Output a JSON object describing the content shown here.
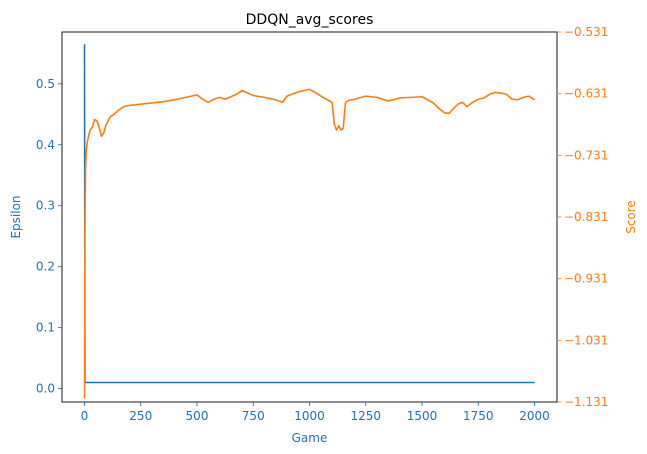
{
  "chart_data": {
    "type": "line",
    "title": "DDQN_avg_scores",
    "xlabel": "Game",
    "ylabel_left": "Epsilon",
    "ylabel_right": "Score",
    "xlim": [
      -100,
      2100
    ],
    "ylim_left": [
      -0.022,
      0.585
    ],
    "ylim_right": [
      -1.131,
      -0.531
    ],
    "x_ticks": [
      "0",
      "250",
      "500",
      "750",
      "1000",
      "1250",
      "1500",
      "1750",
      "2000"
    ],
    "y_left_ticks": [
      "0.0",
      "0.1",
      "0.2",
      "0.3",
      "0.4",
      "0.5"
    ],
    "y_right_ticks": [
      "−0.531",
      "−0.631",
      "−0.731",
      "−0.831",
      "−0.931",
      "−1.031",
      "−1.131"
    ],
    "grid": false,
    "colors": {
      "epsilon": "#1f77b4",
      "score": "#ff7f0e",
      "frame": "#000000"
    },
    "series": [
      {
        "axis": "left",
        "x": [
          0,
          1,
          2,
          5,
          10,
          2000
        ],
        "values": [
          0.565,
          0.3,
          0.011,
          0.01,
          0.01,
          0.01
        ]
      },
      {
        "axis": "right",
        "x": [
          0,
          2,
          5,
          8,
          12,
          18,
          25,
          35,
          45,
          55,
          65,
          75,
          85,
          95,
          105,
          115,
          130,
          150,
          175,
          200,
          250,
          300,
          350,
          400,
          450,
          500,
          525,
          550,
          575,
          600,
          625,
          650,
          675,
          700,
          725,
          750,
          800,
          850,
          880,
          900,
          950,
          1000,
          1030,
          1060,
          1100,
          1110,
          1120,
          1130,
          1140,
          1150,
          1160,
          1175,
          1200,
          1250,
          1300,
          1350,
          1400,
          1450,
          1500,
          1550,
          1575,
          1600,
          1620,
          1640,
          1660,
          1680,
          1700,
          1725,
          1750,
          1775,
          1800,
          1825,
          1850,
          1875,
          1900,
          1925,
          1950,
          1975,
          2000
        ],
        "values": [
          -1.125,
          -0.85,
          -0.75,
          -0.725,
          -0.71,
          -0.7,
          -0.69,
          -0.685,
          -0.673,
          -0.675,
          -0.685,
          -0.7,
          -0.695,
          -0.682,
          -0.675,
          -0.668,
          -0.665,
          -0.658,
          -0.652,
          -0.65,
          -0.648,
          -0.646,
          -0.644,
          -0.641,
          -0.637,
          -0.633,
          -0.64,
          -0.645,
          -0.64,
          -0.637,
          -0.64,
          -0.636,
          -0.632,
          -0.626,
          -0.63,
          -0.634,
          -0.637,
          -0.641,
          -0.645,
          -0.635,
          -0.628,
          -0.624,
          -0.63,
          -0.637,
          -0.645,
          -0.68,
          -0.69,
          -0.683,
          -0.69,
          -0.687,
          -0.645,
          -0.642,
          -0.64,
          -0.635,
          -0.637,
          -0.643,
          -0.638,
          -0.637,
          -0.636,
          -0.646,
          -0.655,
          -0.662,
          -0.663,
          -0.655,
          -0.648,
          -0.645,
          -0.652,
          -0.645,
          -0.64,
          -0.638,
          -0.632,
          -0.629,
          -0.63,
          -0.632,
          -0.64,
          -0.641,
          -0.637,
          -0.635,
          -0.641
        ]
      }
    ]
  }
}
